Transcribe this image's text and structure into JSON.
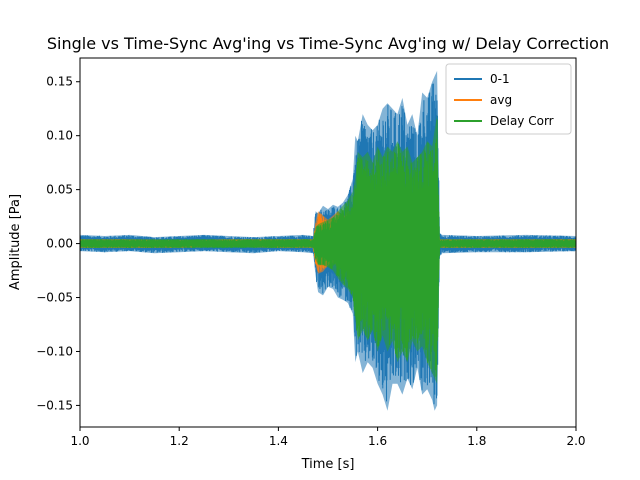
{
  "chart_data": {
    "type": "line",
    "title": "Single vs Time-Sync Avg'ing vs Time-Sync Avg'ing w/ Delay Correction",
    "xlabel": "Time [s]",
    "ylabel": "Amplitude [Pa]",
    "xlim": [
      1.0,
      2.0
    ],
    "ylim": [
      -0.17,
      0.172
    ],
    "xticks": [
      1.0,
      1.2,
      1.4,
      1.6,
      1.8,
      2.0
    ],
    "xtick_labels": [
      "1.0",
      "1.2",
      "1.4",
      "1.6",
      "1.8",
      "2.0"
    ],
    "yticks": [
      -0.15,
      -0.1,
      -0.05,
      0.0,
      0.05,
      0.1,
      0.15
    ],
    "ytick_labels": [
      "−0.15",
      "−0.10",
      "−0.05",
      "0.00",
      "0.05",
      "0.10",
      "0.15"
    ],
    "grid": false,
    "legend": {
      "position": "top-right"
    },
    "series": [
      {
        "name": "0-1",
        "color": "#1f77b4",
        "envelope": {
          "x": [
            1.0,
            1.05,
            1.1,
            1.15,
            1.2,
            1.25,
            1.3,
            1.35,
            1.4,
            1.45,
            1.47,
            1.475,
            1.48,
            1.49,
            1.5,
            1.51,
            1.52,
            1.53,
            1.54,
            1.55,
            1.555,
            1.56,
            1.57,
            1.58,
            1.59,
            1.6,
            1.61,
            1.62,
            1.63,
            1.64,
            1.65,
            1.66,
            1.67,
            1.68,
            1.69,
            1.7,
            1.71,
            1.715,
            1.72,
            1.725,
            1.73,
            1.8,
            1.9,
            2.0
          ],
          "upper": [
            0.008,
            0.007,
            0.008,
            0.006,
            0.007,
            0.008,
            0.007,
            0.006,
            0.007,
            0.008,
            0.007,
            0.03,
            0.028,
            0.035,
            0.032,
            0.036,
            0.034,
            0.038,
            0.045,
            0.06,
            0.1,
            0.095,
            0.12,
            0.11,
            0.105,
            0.11,
            0.125,
            0.13,
            0.125,
            0.12,
            0.135,
            0.11,
            0.12,
            0.1,
            0.14,
            0.135,
            0.15,
            0.155,
            0.16,
            0.01,
            0.008,
            0.007,
            0.008,
            0.007
          ],
          "lower": [
            -0.007,
            -0.008,
            -0.007,
            -0.009,
            -0.008,
            -0.007,
            -0.008,
            -0.009,
            -0.007,
            -0.008,
            -0.009,
            -0.03,
            -0.045,
            -0.048,
            -0.04,
            -0.042,
            -0.05,
            -0.052,
            -0.055,
            -0.065,
            -0.11,
            -0.1,
            -0.12,
            -0.11,
            -0.115,
            -0.13,
            -0.14,
            -0.155,
            -0.13,
            -0.13,
            -0.14,
            -0.125,
            -0.135,
            -0.115,
            -0.14,
            -0.135,
            -0.145,
            -0.155,
            -0.15,
            -0.012,
            -0.009,
            -0.008,
            -0.008,
            -0.007
          ]
        }
      },
      {
        "name": "avg",
        "color": "#ff7f0e",
        "envelope": {
          "x": [
            1.0,
            1.1,
            1.2,
            1.3,
            1.4,
            1.47,
            1.475,
            1.48,
            1.49,
            1.5,
            1.51,
            1.52,
            1.53,
            1.54,
            1.55,
            1.6,
            1.7,
            1.72,
            1.725,
            1.8,
            1.9,
            2.0
          ],
          "upper": [
            0.004,
            0.004,
            0.003,
            0.004,
            0.004,
            0.004,
            0.02,
            0.03,
            0.026,
            0.022,
            0.026,
            0.03,
            0.024,
            0.03,
            0.02,
            0.02,
            0.02,
            0.02,
            0.004,
            0.004,
            0.004,
            0.004
          ],
          "lower": [
            -0.004,
            -0.004,
            -0.004,
            -0.003,
            -0.004,
            -0.004,
            -0.02,
            -0.028,
            -0.026,
            -0.02,
            -0.018,
            -0.02,
            -0.024,
            -0.02,
            -0.02,
            -0.02,
            -0.02,
            -0.02,
            -0.004,
            -0.004,
            -0.004,
            -0.004
          ]
        }
      },
      {
        "name": "Delay Corr",
        "color": "#2ca02c",
        "envelope": {
          "x": [
            1.0,
            1.1,
            1.2,
            1.3,
            1.4,
            1.47,
            1.475,
            1.48,
            1.49,
            1.5,
            1.51,
            1.52,
            1.53,
            1.54,
            1.55,
            1.555,
            1.56,
            1.57,
            1.58,
            1.59,
            1.6,
            1.61,
            1.62,
            1.63,
            1.64,
            1.65,
            1.66,
            1.67,
            1.68,
            1.69,
            1.7,
            1.71,
            1.72,
            1.725,
            1.8,
            1.9,
            2.0
          ],
          "upper": [
            0.004,
            0.004,
            0.004,
            0.004,
            0.004,
            0.004,
            0.015,
            0.018,
            0.02,
            0.022,
            0.024,
            0.03,
            0.035,
            0.04,
            0.048,
            0.06,
            0.085,
            0.08,
            0.085,
            0.075,
            0.09,
            0.08,
            0.09,
            0.085,
            0.095,
            0.085,
            0.09,
            0.075,
            0.08,
            0.085,
            0.095,
            0.09,
            0.12,
            0.004,
            0.004,
            0.004,
            0.004
          ],
          "lower": [
            -0.004,
            -0.004,
            -0.004,
            -0.004,
            -0.004,
            -0.004,
            -0.015,
            -0.02,
            -0.02,
            -0.022,
            -0.025,
            -0.032,
            -0.038,
            -0.042,
            -0.05,
            -0.07,
            -0.09,
            -0.08,
            -0.09,
            -0.08,
            -0.1,
            -0.085,
            -0.1,
            -0.09,
            -0.11,
            -0.1,
            -0.11,
            -0.09,
            -0.1,
            -0.095,
            -0.11,
            -0.12,
            -0.13,
            -0.004,
            -0.004,
            -0.004,
            -0.004
          ]
        }
      }
    ]
  }
}
